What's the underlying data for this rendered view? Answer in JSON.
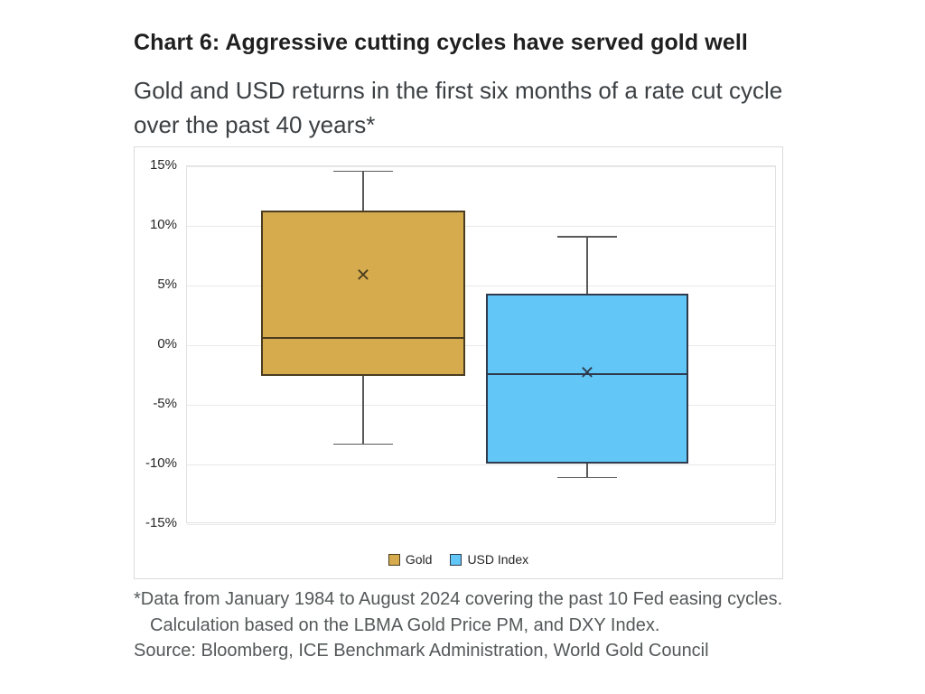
{
  "chart_data": {
    "type": "boxplot",
    "title": "Chart 6: Aggressive cutting cycles have served gold well",
    "subtitle": "Gold and USD returns in the first six months of a rate cut cycle over the past 40 years*",
    "unit": "%",
    "ylim": [
      -15,
      15
    ],
    "grid": true,
    "legend_position": "bottom-center",
    "yticks": [
      {
        "value": 15,
        "label": "15%"
      },
      {
        "value": 10,
        "label": "10%"
      },
      {
        "value": 5,
        "label": "5%"
      },
      {
        "value": 0,
        "label": "0%"
      },
      {
        "value": -5,
        "label": "-5%"
      },
      {
        "value": -10,
        "label": "-10%"
      },
      {
        "value": -15,
        "label": "-15%"
      }
    ],
    "series": [
      {
        "name": "Gold",
        "fill": "#D6AB4E",
        "border": "#4A3D20",
        "whisker_high": 14.6,
        "q3": 11.3,
        "mean": 5.9,
        "median": 0.6,
        "q1": -2.6,
        "whisker_low": -8.3
      },
      {
        "name": "USD Index",
        "fill": "#62C6F7",
        "border": "#2F3B4D",
        "whisker_high": 9.1,
        "q3": 4.3,
        "mean": -2.3,
        "median": -2.4,
        "q1": -9.9,
        "whisker_low": -11.1
      }
    ]
  },
  "footnotes": {
    "line1": "*Data from January 1984 to August 2024 covering the past 10 Fed easing cycles.",
    "line2": "Calculation based on the LBMA Gold Price PM, and DXY Index.",
    "line3": "Source: Bloomberg, ICE Benchmark Administration, World Gold Council"
  },
  "colors": {
    "whisker": "#595959",
    "gridline": "#e9e9e9",
    "panel_border": "#dbdbdb",
    "mean_marker_glyph": "×"
  }
}
